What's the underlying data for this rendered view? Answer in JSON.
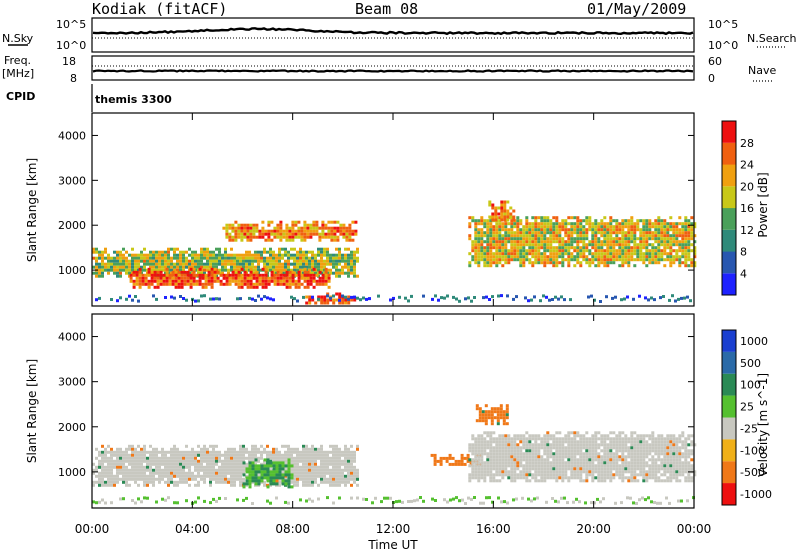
{
  "header": {
    "station": "Kodiak (fitACF)",
    "beam": "Beam 08",
    "date": "01/May/2009"
  },
  "strips": {
    "nsky_label": "N.Sky",
    "nsearch_label": "N.Search",
    "freq_label_1": "Freq.",
    "freq_label_2": "[MHz]",
    "nave_label": "Nave",
    "cpid_label": "CPID",
    "cpid_value": "themis 3300",
    "nsky_ticks": [
      "10^5",
      "10^0"
    ],
    "nsearch_ticks": [
      "10^5",
      "10^0"
    ],
    "freq_ticks": [
      "18",
      "8"
    ],
    "nave_ticks": [
      "60",
      "0"
    ]
  },
  "chart_data": [
    {
      "type": "heatmap",
      "title": "",
      "xlabel": "",
      "ylabel": "Slant Range [km]",
      "x_ticks": [
        "00:00",
        "04:00",
        "08:00",
        "12:00",
        "16:00",
        "20:00",
        "00:00"
      ],
      "x_range_hours": [
        0,
        24
      ],
      "y_ticks": [
        1000,
        2000,
        3000,
        4000
      ],
      "ylim": [
        200,
        4500
      ],
      "colorbar": {
        "label": "Power [dB]",
        "ticks": [
          4,
          8,
          12,
          16,
          20,
          24,
          28
        ],
        "colors": [
          "#1e22ff",
          "#2857b0",
          "#2f8a7a",
          "#4aa05a",
          "#c8c818",
          "#f0a010",
          "#f06010",
          "#ee1010"
        ]
      },
      "regions": [
        {
          "t0": 0.0,
          "t1": 10.6,
          "r0": 850,
          "r1": 1500,
          "value": 18,
          "note": "broad echo band"
        },
        {
          "t0": 1.5,
          "t1": 9.5,
          "r0": 600,
          "r1": 1050,
          "value": 28
        },
        {
          "t0": 8.5,
          "t1": 10.5,
          "r0": 250,
          "r1": 500,
          "value": 28
        },
        {
          "t0": 5.2,
          "t1": 10.5,
          "r0": 1650,
          "r1": 2100,
          "value": 24
        },
        {
          "t0": 15.0,
          "t1": 24.0,
          "r0": 1100,
          "r1": 2200,
          "value": 20
        },
        {
          "t0": 15.8,
          "t1": 16.8,
          "r0": 2100,
          "r1": 2550,
          "value": 24
        }
      ]
    },
    {
      "type": "heatmap",
      "title": "",
      "xlabel": "Time UT",
      "ylabel": "Slant Range [km]",
      "x_ticks": [
        "00:00",
        "04:00",
        "08:00",
        "12:00",
        "16:00",
        "20:00",
        "00:00"
      ],
      "x_range_hours": [
        0,
        24
      ],
      "y_ticks": [
        1000,
        2000,
        3000,
        4000
      ],
      "ylim": [
        200,
        4500
      ],
      "colorbar": {
        "label": "Velocity [m s^-1]",
        "tick_labels": [
          "1000",
          "500",
          "100",
          "25",
          "-25",
          "-100",
          "-500",
          "-1000"
        ],
        "colors": [
          "#1a3fd0",
          "#2a6aa8",
          "#2a8a55",
          "#55c030",
          "#c8c8c0",
          "#f0b018",
          "#f07818",
          "#ee1010"
        ]
      },
      "regions": [
        {
          "t0": 0.0,
          "t1": 10.6,
          "r0": 700,
          "r1": 1600,
          "value": 0,
          "note": "ground scatter grey"
        },
        {
          "t0": 6.0,
          "t1": 8.0,
          "r0": 700,
          "r1": 1300,
          "value": 100
        },
        {
          "t0": 15.3,
          "t1": 16.5,
          "r0": 2100,
          "r1": 2500,
          "value": -300
        },
        {
          "t0": 13.5,
          "t1": 15.5,
          "r0": 1150,
          "r1": 1400,
          "value": -300
        },
        {
          "t0": 15.0,
          "t1": 24.0,
          "r0": 800,
          "r1": 1900,
          "value": 0
        }
      ]
    }
  ],
  "colors": {
    "frame": "#000000",
    "background": "#ffffff"
  }
}
